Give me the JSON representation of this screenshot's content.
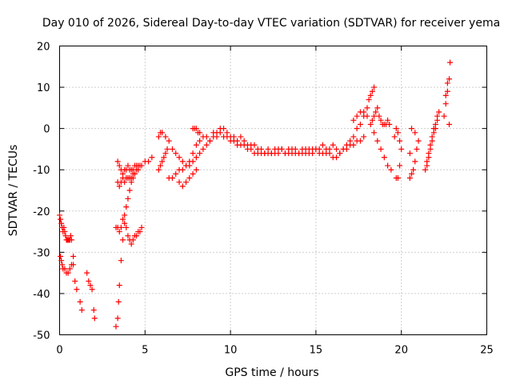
{
  "chart_data": {
    "type": "scatter",
    "title": "Day 010 of 2026, Sidereal Day-to-day VTEC variation (SDTVAR) for receiver yema",
    "xlabel": "GPS time / hours",
    "ylabel": "SDTVAR / TECUs",
    "xlim": [
      0,
      25
    ],
    "ylim": [
      -50,
      20
    ],
    "xticks": [
      "0",
      "5",
      "10",
      "15",
      "20",
      "25"
    ],
    "yticks": [
      "-50",
      "-40",
      "-30",
      "-20",
      "-10",
      "0",
      "10",
      "20"
    ],
    "grid": true,
    "marker": "+",
    "color": "#ff0000",
    "series": [
      {
        "name": "SDTVAR",
        "x": [
          0.0,
          0.05,
          0.1,
          0.15,
          0.2,
          0.25,
          0.3,
          0.35,
          0.4,
          0.45,
          0.5,
          0.55,
          0.6,
          0.65,
          0.7,
          0.8,
          0.9,
          1.0,
          1.2,
          1.3,
          1.6,
          1.7,
          1.8,
          1.9,
          2.0,
          2.05,
          0.05,
          0.1,
          0.15,
          0.2,
          0.3,
          0.4,
          0.5,
          0.6,
          0.7,
          0.8,
          3.3,
          3.4,
          3.5,
          3.6,
          3.7,
          3.8,
          3.9,
          4.0,
          4.1,
          4.2,
          4.3,
          4.4,
          4.5,
          4.6,
          4.7,
          4.8,
          3.3,
          3.4,
          3.45,
          3.5,
          3.6,
          3.7,
          3.8,
          3.9,
          4.0,
          4.1,
          4.2,
          4.3,
          4.4,
          4.5,
          4.6,
          4.7,
          3.4,
          3.5,
          3.6,
          3.7,
          3.8,
          3.9,
          4.0,
          4.1,
          4.2,
          4.3,
          4.4,
          4.5,
          4.6,
          4.8,
          5.0,
          5.2,
          5.4,
          3.4,
          3.5,
          3.6,
          3.7,
          3.8,
          3.9,
          4.0,
          4.1,
          4.2,
          4.3,
          4.4,
          5.8,
          5.9,
          6.0,
          6.1,
          6.2,
          6.3,
          5.8,
          5.9,
          6.0,
          6.2,
          6.4,
          6.6,
          6.8,
          7.0,
          7.2,
          7.4,
          7.6,
          7.8,
          8.0,
          8.2,
          8.4,
          8.6,
          8.8,
          9.0,
          9.2,
          9.4,
          9.6,
          9.8,
          10.0,
          10.2,
          10.4,
          10.6,
          10.8,
          11.0,
          11.2,
          11.4,
          11.6,
          11.8,
          12.0,
          12.2,
          12.4,
          12.6,
          12.8,
          13.0,
          13.2,
          13.4,
          13.6,
          13.8,
          14.0,
          14.2,
          14.4,
          14.6,
          14.8,
          15.0,
          15.2,
          15.4,
          15.6,
          15.8,
          16.0,
          16.2,
          16.4,
          16.6,
          16.8,
          17.0,
          17.2,
          17.4,
          17.6,
          17.8,
          18.0,
          18.1,
          18.2,
          18.3,
          18.4,
          6.4,
          6.6,
          6.8,
          7.0,
          7.2,
          7.4,
          7.6,
          7.8,
          8.0,
          8.2,
          8.4,
          8.6,
          8.8,
          9.0,
          9.2,
          9.4,
          9.6,
          9.8,
          10.0,
          10.2,
          10.4,
          10.6,
          10.8,
          11.0,
          11.2,
          11.4,
          11.6,
          11.8,
          12.0,
          12.2,
          12.4,
          12.6,
          12.8,
          13.0,
          13.2,
          13.4,
          13.6,
          13.8,
          14.0,
          14.2,
          14.4,
          14.6,
          14.8,
          15.0,
          15.2,
          15.4,
          15.6,
          15.8,
          16.0,
          16.2,
          16.4,
          16.6,
          16.8,
          17.0,
          17.2,
          17.4,
          17.6,
          17.8,
          7.0,
          7.2,
          7.4,
          7.6,
          7.8,
          8.0,
          7.8,
          7.9,
          8.0,
          8.1,
          8.2,
          17.2,
          17.4,
          17.6,
          17.8,
          18.0,
          18.2,
          18.4,
          18.6,
          18.8,
          19.0,
          19.2,
          19.4,
          18.3,
          18.4,
          18.5,
          18.6,
          18.7,
          18.8,
          18.9,
          19.0,
          19.1,
          19.2,
          19.3,
          19.7,
          19.8,
          19.9,
          20.0,
          19.9,
          19.8,
          19.7,
          19.6,
          20.5,
          20.6,
          20.7,
          20.8,
          20.9,
          21.0,
          20.8,
          20.6,
          20.5,
          21.5,
          21.6,
          21.7,
          21.8,
          21.9,
          22.0,
          22.1,
          22.2,
          21.4,
          21.5,
          21.6,
          21.7,
          21.8,
          21.9,
          22.0,
          22.1,
          22.5,
          22.6,
          22.7,
          22.8,
          22.85,
          22.7,
          22.6,
          22.8
        ],
        "y": [
          -21,
          -22,
          -23,
          -24,
          -25,
          -24,
          -25,
          -26,
          -27,
          -27,
          -27,
          -27,
          -27,
          -26,
          -27,
          -33,
          -37,
          -39,
          -42,
          -44,
          -35,
          -37,
          -38,
          -39,
          -44,
          -46,
          -31,
          -32,
          -33,
          -34,
          -34,
          -35,
          -35,
          -34,
          -33,
          -31,
          -24,
          -24,
          -25,
          -24,
          -22,
          -21,
          -24,
          -26,
          -27,
          -28,
          -27,
          -26,
          -26,
          -25,
          -25,
          -24,
          -48,
          -46,
          -42,
          -38,
          -32,
          -27,
          -23,
          -19,
          -17,
          -15,
          -13,
          -12,
          -11,
          -10,
          -10,
          -9,
          -8,
          -9,
          -10,
          -11,
          -10,
          -10,
          -9,
          -10,
          -10,
          -10,
          -9,
          -9,
          -9,
          -9,
          -8,
          -8,
          -7,
          -13,
          -14,
          -13,
          -12,
          -13,
          -12,
          -12,
          -12,
          -12,
          -11,
          -11,
          -10,
          -9,
          -8,
          -7,
          -6,
          -5,
          -2,
          -1,
          -1,
          -2,
          -3,
          -5,
          -6,
          -7,
          -8,
          -9,
          -8,
          -6,
          -4,
          -3,
          -2,
          -2,
          -3,
          -1,
          -1,
          0,
          0,
          -1,
          -2,
          -2,
          -3,
          -2,
          -3,
          -4,
          -4,
          -4,
          -5,
          -5,
          -6,
          -5,
          -6,
          -5,
          -5,
          -5,
          -6,
          -5,
          -5,
          -5,
          -6,
          -5,
          -5,
          -5,
          -5,
          -5,
          -5,
          -4,
          -5,
          -5,
          -4,
          -5,
          -6,
          -5,
          -4,
          -3,
          -2,
          0,
          1,
          3,
          5,
          7,
          8,
          9,
          10,
          -12,
          -12,
          -11,
          -10,
          -10,
          -9,
          -9,
          -8,
          -7,
          -6,
          -5,
          -4,
          -3,
          -2,
          -2,
          -1,
          -2,
          -2,
          -3,
          -3,
          -4,
          -4,
          -4,
          -5,
          -5,
          -6,
          -6,
          -6,
          -6,
          -6,
          -6,
          -6,
          -6,
          -5,
          -6,
          -6,
          -6,
          -6,
          -6,
          -6,
          -6,
          -6,
          -6,
          -5,
          -6,
          -6,
          -6,
          -6,
          -7,
          -7,
          -6,
          -5,
          -5,
          -4,
          -4,
          -3,
          -3,
          -2,
          -13,
          -14,
          -13,
          -12,
          -11,
          -10,
          0,
          0,
          0,
          -1,
          -1,
          2,
          3,
          4,
          4,
          3,
          1,
          -1,
          -3,
          -5,
          -7,
          -9,
          -10,
          2,
          3,
          4,
          5,
          3,
          2,
          1,
          1,
          1,
          2,
          1,
          -12,
          -12,
          -9,
          -5,
          -3,
          -1,
          0,
          -2,
          -12,
          -11,
          -10,
          -8,
          -5,
          -3,
          -1,
          0,
          -6,
          -8,
          -6,
          -4,
          -2,
          0,
          1,
          3,
          4,
          -10,
          -9,
          -7,
          -5,
          -3,
          -1,
          0,
          2,
          3,
          6,
          9,
          12,
          16,
          11,
          8,
          1
        ]
      }
    ]
  }
}
